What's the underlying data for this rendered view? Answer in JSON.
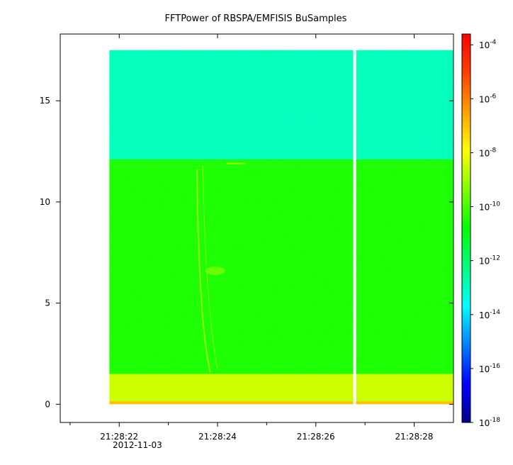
{
  "chart_data": {
    "type": "heatmap",
    "title": "FFTPower of RBSPA/EMFISIS  BuSamples",
    "xlabel": "",
    "ylabel": "",
    "x_ticks": [
      {
        "value": 1.2,
        "label": "21:28:22"
      },
      {
        "value": 3.2,
        "label": "21:28:24"
      },
      {
        "value": 5.2,
        "label": "21:28:26"
      },
      {
        "value": 7.2,
        "label": "21:28:28"
      }
    ],
    "x_minor_ticks": [
      0.2,
      2.2,
      4.2,
      6.2
    ],
    "x_date_label": "2012-11-03",
    "x_range_seconds": [
      0.0,
      8.0
    ],
    "y_ticks": [
      0,
      5,
      10,
      15
    ],
    "ylim": [
      -0.9,
      18.3
    ],
    "data_extent": {
      "x_start_seconds": 1.0,
      "x_end_seconds": 8.0,
      "y_max": 17.5
    },
    "data_gap": {
      "x_start_seconds": 5.96,
      "x_end_seconds": 6.02
    },
    "regions": [
      {
        "band": [
          12.1,
          17.5
        ],
        "log10_power": -13
      },
      {
        "band": [
          1.5,
          12.1
        ],
        "log10_power": -10.5
      },
      {
        "band": [
          0.15,
          1.5
        ],
        "log10_power": -8.5
      },
      {
        "band": [
          0.0,
          0.15
        ],
        "log10_power": -7
      }
    ],
    "colorbar": {
      "scale": "log",
      "range_exponent": [
        -18,
        -3.6
      ],
      "ticks": [
        {
          "base": "10",
          "exp": "-4",
          "value": -4
        },
        {
          "base": "10",
          "exp": "-6",
          "value": -6
        },
        {
          "base": "10",
          "exp": "-8",
          "value": -8
        },
        {
          "base": "10",
          "exp": "-10",
          "value": -10
        },
        {
          "base": "10",
          "exp": "-12",
          "value": -12
        },
        {
          "base": "10",
          "exp": "-14",
          "value": -14
        },
        {
          "base": "10",
          "exp": "-16",
          "value": -16
        },
        {
          "base": "10",
          "exp": "-18",
          "value": -18
        }
      ],
      "colormap": [
        "#00008b",
        "#0000ff",
        "#0080ff",
        "#00ffff",
        "#00ff80",
        "#00ff00",
        "#80ff00",
        "#ffff00",
        "#ffa000",
        "#ff4000",
        "#ff0000"
      ]
    },
    "grid": false
  }
}
